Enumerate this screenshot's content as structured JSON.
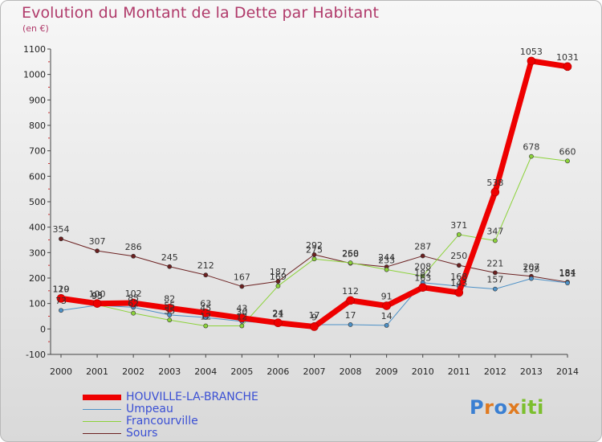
{
  "header": {
    "title": "Evolution du Montant de la Dette par Habitant",
    "subtitle": "(en €)"
  },
  "logo": {
    "text": "Proxiti",
    "letters": [
      "P",
      "r",
      "o",
      "x",
      "i",
      "ti"
    ]
  },
  "chart_data": {
    "type": "line",
    "x": [
      "2000",
      "2001",
      "2002",
      "2003",
      "2004",
      "2005",
      "2006",
      "2007",
      "2008",
      "2009",
      "2010",
      "2011",
      "2012",
      "2013",
      "2014"
    ],
    "ylim": [
      -100,
      1100
    ],
    "yticks": [
      "-100",
      "0",
      "100",
      "200",
      "300",
      "400",
      "500",
      "600",
      "700",
      "800",
      "900",
      "1000",
      "1100"
    ],
    "grid": false,
    "legend_position": "bottom-left",
    "series": [
      {
        "name": "Sours",
        "color": "#6b2020",
        "width": 1,
        "marker": 2.6,
        "values": [
          354,
          307,
          286,
          245,
          212,
          167,
          187,
          292,
          258,
          244,
          287,
          250,
          221,
          207,
          184
        ],
        "labels": [
          "354",
          "307",
          "286",
          "245",
          "212",
          "167",
          "187",
          "292",
          "258",
          "244",
          "287",
          "250",
          "221",
          "207",
          "184"
        ]
      },
      {
        "name": "Francourville",
        "color": "#8cd23a",
        "width": 1,
        "marker": 2.6,
        "values": [
          119,
          95,
          62,
          35,
          12,
          12,
          169,
          275,
          260,
          233,
          208,
          371,
          347,
          678,
          660
        ],
        "labels": [
          "119",
          "95",
          "62",
          "35",
          "12",
          "12",
          "169",
          "275",
          "260",
          "233",
          "208",
          "371",
          "347",
          "678",
          "660"
        ]
      },
      {
        "name": "Umpeau",
        "color": "#4d91c7",
        "width": 1,
        "marker": 2.6,
        "values": [
          73,
          93,
          85,
          55,
          45,
          30,
          21,
          17,
          17,
          14,
          182,
          168,
          157,
          198,
          181
        ],
        "labels": [
          "73",
          "93",
          "85",
          "55",
          "45",
          "30",
          "21",
          "17",
          "17",
          "14",
          "182",
          "168",
          "157",
          "198",
          "181"
        ]
      },
      {
        "name": "HOUVILLE-LA-BRANCHE",
        "color": "#ee0000",
        "width": 7,
        "marker": 5,
        "values": [
          120,
          100,
          102,
          82,
          63,
          43,
          24,
          9,
          112,
          91,
          163,
          143,
          538,
          1053,
          1031
        ],
        "labels": [
          "120",
          "100",
          "102",
          "82",
          "63",
          "43",
          "24",
          "9",
          "112",
          "91",
          "163",
          "143",
          "538",
          "1053",
          "1031"
        ]
      }
    ]
  },
  "legend": {
    "items": [
      {
        "label": "HOUVILLE-LA-BRANCHE",
        "color": "#ee0000",
        "thickness": 7,
        "text_color": "#3a4fd4"
      },
      {
        "label": "Umpeau",
        "color": "#4d91c7",
        "thickness": 1,
        "text_color": "#3a4fd4"
      },
      {
        "label": "Francourville",
        "color": "#8cd23a",
        "thickness": 1,
        "text_color": "#3a4fd4"
      },
      {
        "label": "Sours",
        "color": "#6b2020",
        "thickness": 1,
        "text_color": "#3a4fd4"
      }
    ]
  }
}
